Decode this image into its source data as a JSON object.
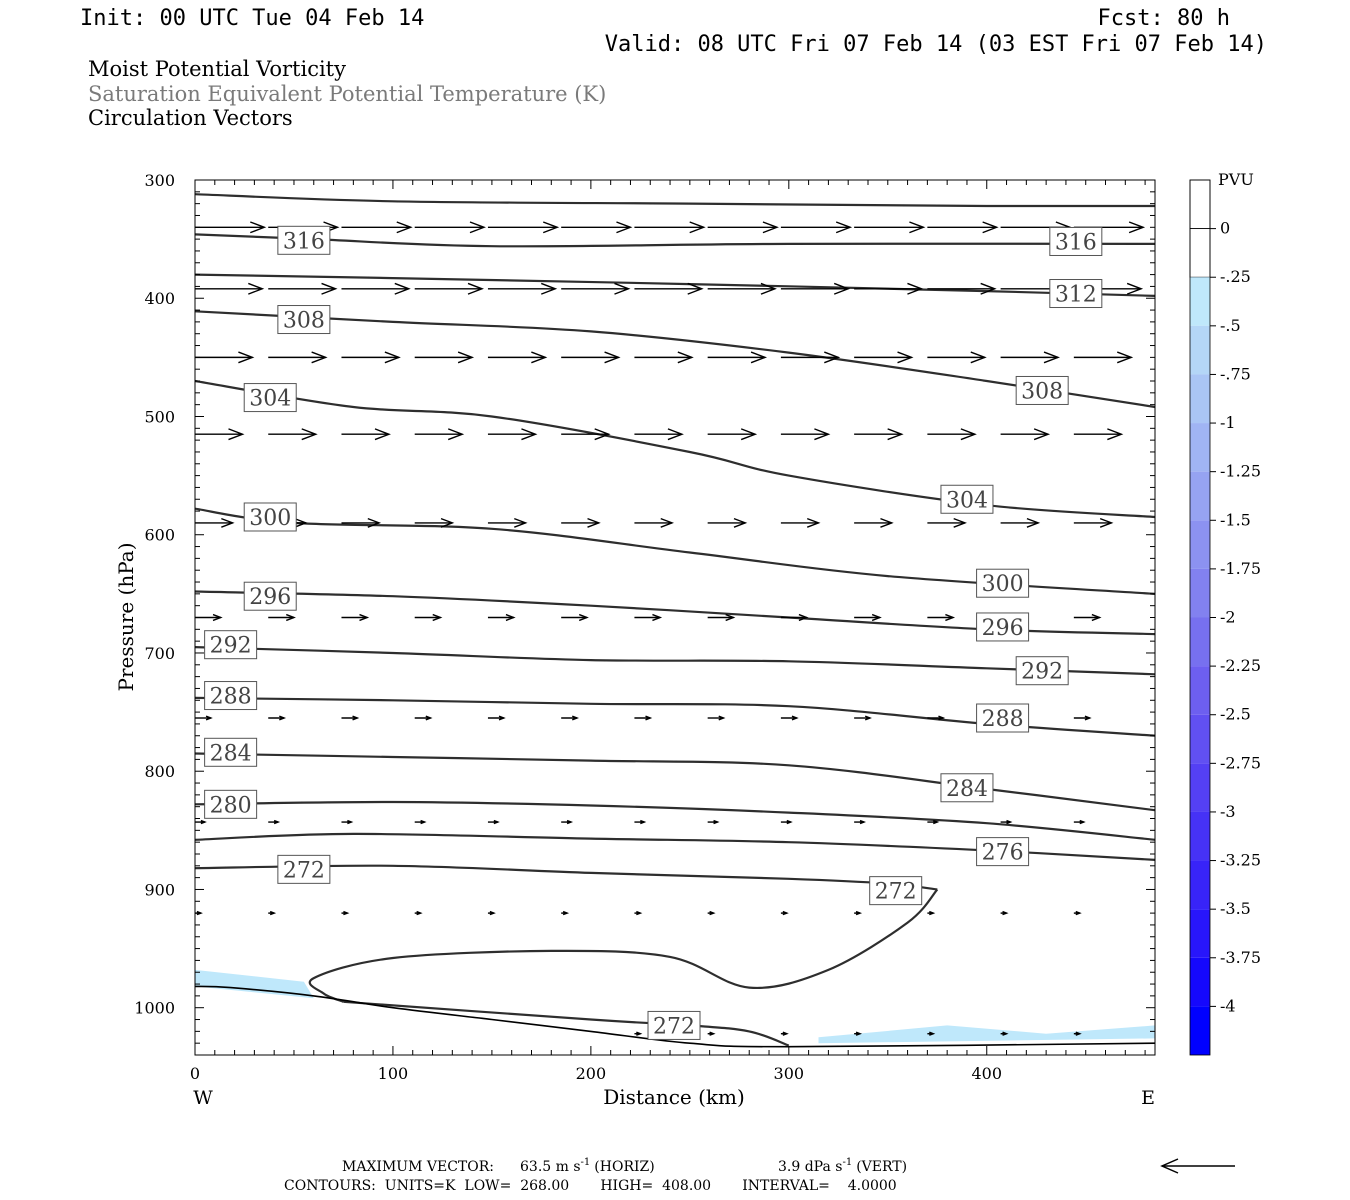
{
  "header": {
    "init": "Init: 00 UTC Tue 04 Feb 14",
    "fcst": "Fcst:   80 h",
    "valid": "Valid: 08 UTC Fri 07 Feb 14 (03 EST Fri 07 Feb 14)",
    "fields": [
      {
        "text": "Moist Potential Vorticity",
        "color": "#000000"
      },
      {
        "text": "Saturation Equivalent Potential Temperature (K)",
        "color": "#7a7a7a"
      },
      {
        "text": "Circulation Vectors",
        "color": "#000000"
      }
    ]
  },
  "chart_data": {
    "type": "line",
    "xlabel": "Distance (km)",
    "ylabel": "Pressure (hPa)",
    "xlim": [
      0,
      485
    ],
    "ylim": [
      1040,
      300
    ],
    "xticks": [
      0,
      100,
      200,
      300,
      400
    ],
    "yticks": [
      300,
      400,
      500,
      600,
      700,
      800,
      900,
      1000
    ],
    "x_end_labels": {
      "left": "W",
      "right": "E"
    },
    "contour_units": "K",
    "contour_interval": 4,
    "series": [
      {
        "name": "",
        "x": [
          0,
          100,
          250,
          400,
          485
        ],
        "y": [
          312,
          318,
          320,
          322,
          322
        ]
      },
      {
        "name": "316",
        "x": [
          0,
          60,
          150,
          300,
          485
        ],
        "y": [
          346,
          350,
          356,
          354,
          354
        ]
      },
      {
        "name": "312",
        "x": [
          0,
          100,
          250,
          400,
          485
        ],
        "y": [
          380,
          383,
          388,
          394,
          398
        ]
      },
      {
        "name": "308",
        "x": [
          0,
          100,
          200,
          300,
          400,
          485
        ],
        "y": [
          411,
          420,
          428,
          446,
          470,
          492
        ]
      },
      {
        "name": "304",
        "x": [
          0,
          80,
          150,
          250,
          300,
          400,
          485
        ],
        "y": [
          470,
          492,
          500,
          530,
          550,
          575,
          585
        ]
      },
      {
        "name": "300",
        "x": [
          0,
          50,
          150,
          250,
          350,
          485
        ],
        "y": [
          578,
          590,
          595,
          615,
          635,
          650
        ]
      },
      {
        "name": "296",
        "x": [
          0,
          100,
          200,
          300,
          400,
          485
        ],
        "y": [
          648,
          652,
          660,
          670,
          680,
          684
        ]
      },
      {
        "name": "292",
        "x": [
          0,
          100,
          200,
          300,
          400,
          485
        ],
        "y": [
          695,
          700,
          706,
          707,
          713,
          718
        ]
      },
      {
        "name": "288",
        "x": [
          0,
          100,
          200,
          300,
          400,
          485
        ],
        "y": [
          738,
          740,
          743,
          745,
          760,
          770
        ]
      },
      {
        "name": "284",
        "x": [
          0,
          100,
          200,
          300,
          400,
          485
        ],
        "y": [
          785,
          788,
          791,
          795,
          815,
          833
        ]
      },
      {
        "name": "280",
        "x": [
          0,
          100,
          200,
          300,
          400,
          485
        ],
        "y": [
          828,
          826,
          829,
          835,
          844,
          858
        ]
      },
      {
        "name": "276",
        "x": [
          0,
          80,
          200,
          300,
          400,
          485
        ],
        "y": [
          858,
          853,
          857,
          860,
          867,
          875
        ]
      },
      {
        "name": "272",
        "x": [
          0,
          100,
          200,
          300,
          350,
          375
        ],
        "y": [
          882,
          880,
          886,
          891,
          895,
          900
        ]
      },
      {
        "name": "272",
        "x": [
          375,
          360,
          320,
          280,
          240,
          180,
          100,
          60,
          65,
          75
        ],
        "y": [
          900,
          928,
          968,
          983,
          957,
          952,
          958,
          975,
          988,
          995
        ]
      },
      {
        "name": "272",
        "x": [
          75,
          200,
          250,
          280,
          300
        ],
        "y": [
          995,
          1010,
          1015,
          1020,
          1032
        ]
      }
    ],
    "contour_labels": [
      {
        "text": "316",
        "x": 55,
        "y": 351
      },
      {
        "text": "316",
        "x": 445,
        "y": 352
      },
      {
        "text": "312",
        "x": 445,
        "y": 396
      },
      {
        "text": "308",
        "x": 55,
        "y": 418
      },
      {
        "text": "308",
        "x": 428,
        "y": 478
      },
      {
        "text": "304",
        "x": 38,
        "y": 484
      },
      {
        "text": "304",
        "x": 390,
        "y": 570
      },
      {
        "text": "300",
        "x": 38,
        "y": 585
      },
      {
        "text": "300",
        "x": 408,
        "y": 641
      },
      {
        "text": "296",
        "x": 38,
        "y": 652
      },
      {
        "text": "296",
        "x": 408,
        "y": 678
      },
      {
        "text": "292",
        "x": 18,
        "y": 693
      },
      {
        "text": "292",
        "x": 428,
        "y": 715
      },
      {
        "text": "288",
        "x": 18,
        "y": 736
      },
      {
        "text": "288",
        "x": 408,
        "y": 755
      },
      {
        "text": "284",
        "x": 18,
        "y": 784
      },
      {
        "text": "284",
        "x": 390,
        "y": 814
      },
      {
        "text": "280",
        "x": 18,
        "y": 828
      },
      {
        "text": "276",
        "x": 408,
        "y": 868
      },
      {
        "text": "272",
        "x": 55,
        "y": 883
      },
      {
        "text": "272",
        "x": 354,
        "y": 901
      },
      {
        "text": "272",
        "x": 242,
        "y": 1015
      }
    ],
    "vector_rows": [
      {
        "p": 340,
        "start": 0,
        "step": 37,
        "dx": 35,
        "count": 13
      },
      {
        "p": 392,
        "start": 0,
        "step": 37,
        "dx": 34,
        "count": 13
      },
      {
        "p": 450,
        "start": 0,
        "step": 37,
        "dx": 29,
        "count": 13
      },
      {
        "p": 515,
        "start": 0,
        "step": 37,
        "dx": 24,
        "count": 13
      },
      {
        "p": 590,
        "start": 0,
        "step": 37,
        "dx": 19,
        "count": 13
      },
      {
        "p": 670,
        "start": 0,
        "step": 37,
        "dx": 13,
        "count": 13
      },
      {
        "p": 755,
        "start": 0,
        "step": 37,
        "dx": 8,
        "count": 13
      },
      {
        "p": 843,
        "start": 0,
        "step": 37,
        "dx": 5,
        "count": 13
      },
      {
        "p": 920,
        "start": 0,
        "step": 37,
        "dx": 3,
        "count": 13
      },
      {
        "p": 1022,
        "start": 222,
        "step": 37,
        "dx": 3,
        "count": 7
      }
    ],
    "mpv_shading": [
      {
        "x": [
          0,
          55,
          60,
          0
        ],
        "y": [
          968,
          978,
          992,
          982
        ]
      },
      {
        "x": [
          315,
          380,
          430,
          485,
          485,
          315
        ],
        "y": [
          1025,
          1015,
          1022,
          1015,
          1026,
          1030
        ]
      }
    ],
    "terrain": {
      "x": [
        0,
        18,
        60,
        100,
        150,
        200,
        250,
        300,
        485
      ],
      "y": [
        982,
        983,
        990,
        1000,
        1010,
        1020,
        1030,
        1033,
        1030
      ]
    }
  },
  "colorbar": {
    "title": "PVU",
    "labels": [
      "0",
      "-.25",
      "-.5",
      "-.75",
      "-1",
      "-1.25",
      "-1.5",
      "-1.75",
      "-2",
      "-2.25",
      "-2.5",
      "-2.75",
      "-3",
      "-3.25",
      "-3.5",
      "-3.75",
      "-4"
    ],
    "colors": [
      "#ffffff",
      "#ffffff",
      "#bfe8fb",
      "#b4d6f7",
      "#aac5f5",
      "#a0b4f3",
      "#96a3f2",
      "#8c92f1",
      "#8281f0",
      "#7770ef",
      "#6d5ff0",
      "#6150f2",
      "#5440f4",
      "#4632f6",
      "#3824f8",
      "#2816fb",
      "#1508fd",
      "#0000ff"
    ]
  },
  "footer": {
    "line1_label": "MAXIMUM VECTOR:",
    "horiz_value": "63.5 m s",
    "horiz_exp": "-1",
    "horiz_tag": "(HORIZ)",
    "vert_value": "3.9 dPa s",
    "vert_exp": "-1",
    "vert_tag": "(VERT)",
    "line2": "CONTOURS:  UNITS=K  LOW=  268.00       HIGH=  408.00       INTERVAL=    4.0000"
  },
  "colors": {
    "contour": "#2e2e2e",
    "shading": "#bfe8fb",
    "arrow": "#000000"
  }
}
